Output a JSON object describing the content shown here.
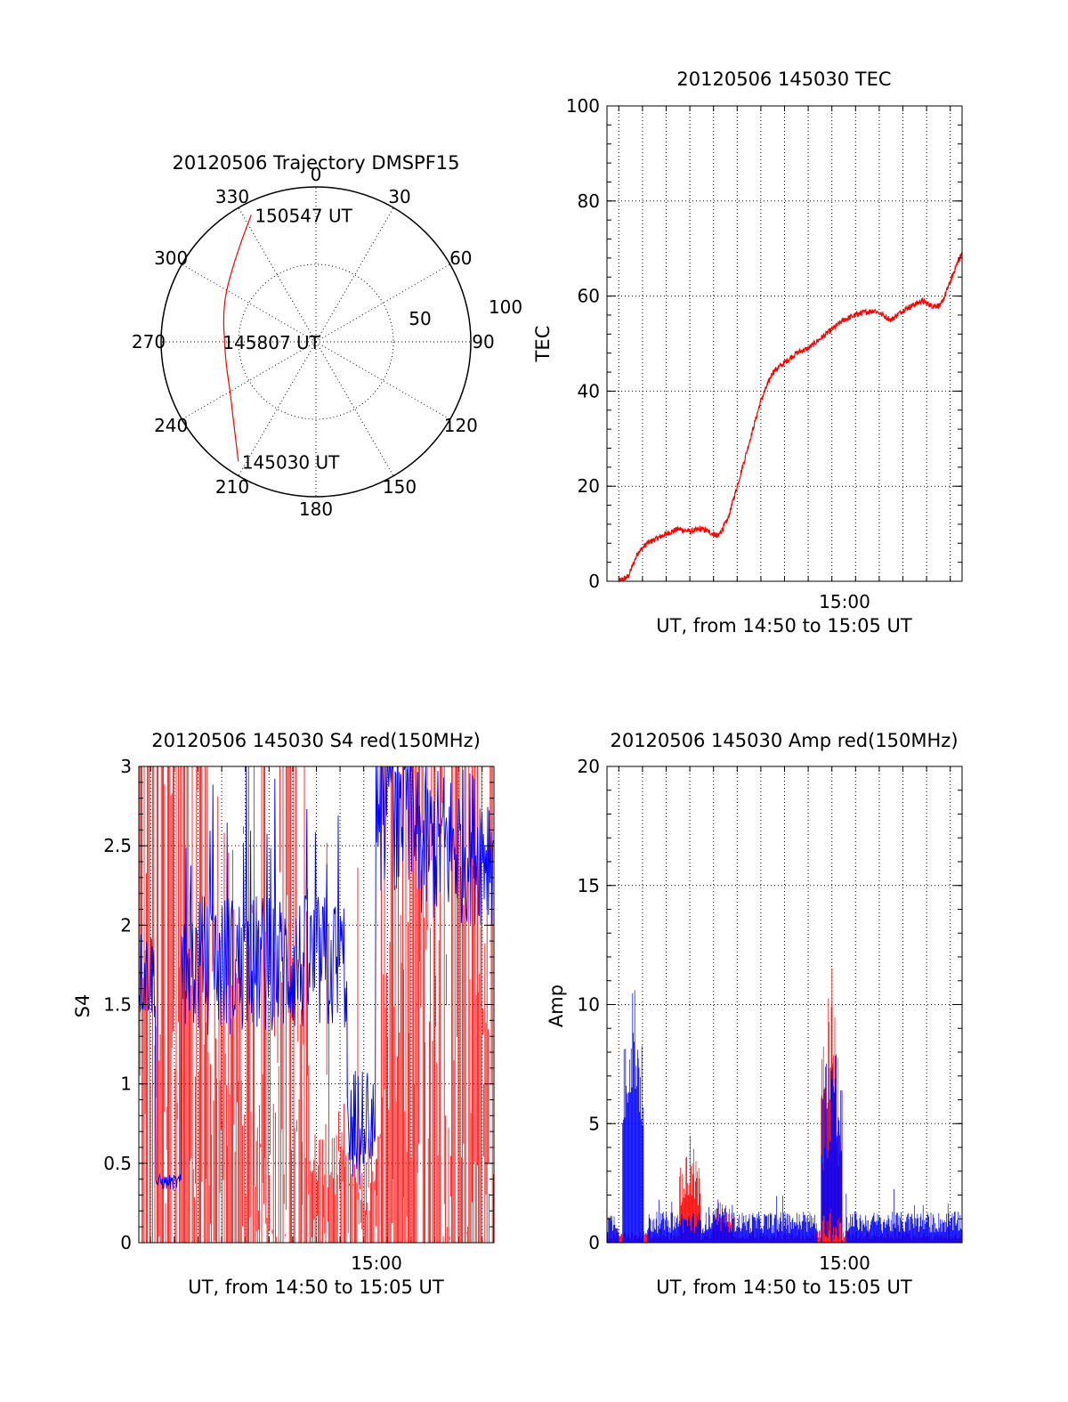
{
  "chart_data": [
    {
      "type": "polar",
      "title": "20120506 Trajectory DMSPF15",
      "angle_labels": [
        "0",
        "30",
        "60",
        "90",
        "120",
        "150",
        "180",
        "210",
        "240",
        "270",
        "300",
        "330"
      ],
      "radius_labels": [
        "50",
        "100"
      ],
      "radial_max": 100,
      "trajectory": {
        "color": "#ff0000",
        "points": [
          {
            "az": 333,
            "zen": 92
          },
          {
            "az": 320,
            "zen": 78
          },
          {
            "az": 300,
            "zen": 67
          },
          {
            "az": 285,
            "zen": 62
          },
          {
            "az": 270,
            "zen": 59
          },
          {
            "az": 255,
            "zen": 60
          },
          {
            "az": 240,
            "zen": 64
          },
          {
            "az": 225,
            "zen": 75
          },
          {
            "az": 213,
            "zen": 92
          }
        ]
      },
      "annotations": [
        {
          "text": "150547 UT",
          "az": 333,
          "zen": 92
        },
        {
          "text": "145807 UT",
          "az": 270,
          "zen": 59
        },
        {
          "text": "145030 UT",
          "az": 213,
          "zen": 92
        }
      ]
    },
    {
      "type": "line",
      "title": "20120506 145030 TEC",
      "ylabel": "TEC",
      "xlabel": "UT, from 14:50 to 15:05 UT",
      "xtick_label": "15:00",
      "ylim": [
        0,
        100
      ],
      "yticks": [
        "0",
        "20",
        "40",
        "60",
        "80",
        "100"
      ],
      "xlim_min": [
        50.5,
        65.5
      ],
      "series": [
        {
          "color": "#ff0000",
          "x": [
            51.0,
            51.4,
            51.8,
            52.2,
            52.6,
            53.0,
            53.5,
            54.0,
            54.5,
            55.0,
            55.2,
            55.6,
            56.0,
            56.5,
            57.0,
            57.5,
            58.0,
            58.5,
            59.0,
            59.5,
            60.0,
            60.5,
            61.0,
            61.3,
            61.8,
            62.5,
            63.0,
            63.4,
            63.8,
            64.2,
            64.6,
            65.0,
            65.3,
            65.5
          ],
          "y": [
            0,
            1,
            6,
            8,
            9,
            10,
            11,
            10.5,
            11,
            10,
            9.5,
            13,
            20,
            29,
            38,
            44,
            46,
            48,
            49,
            51,
            53,
            55,
            56,
            56.5,
            57,
            55,
            57,
            58,
            59,
            58,
            58,
            63,
            67,
            69
          ]
        }
      ]
    },
    {
      "type": "line",
      "title": "20120506 145030 S4 red(150MHz)",
      "ylabel": "S4",
      "xlabel": "UT, from 14:50 to 15:05 UT",
      "xtick_label": "15:00",
      "ylim": [
        0,
        3
      ],
      "yticks": [
        "0",
        "0.5",
        "1",
        "1.5",
        "2",
        "2.5",
        "3"
      ],
      "xlim_min": [
        50.5,
        65.5
      ],
      "series": [
        {
          "color": "#ff0000",
          "pattern": "dense spikes between 0 and 3"
        },
        {
          "color": "#0000ff",
          "pattern": "fluctuating 1.3–2.2 with drops near 0.35 and 0.5"
        }
      ]
    },
    {
      "type": "line",
      "title": "20120506 145030 Amp red(150MHz)",
      "ylabel": "Amp",
      "xlabel": "UT, from 14:50 to 15:05 UT",
      "xtick_label": "15:00",
      "ylim": [
        0,
        20
      ],
      "yticks": [
        "0",
        "5",
        "10",
        "15",
        "20"
      ],
      "xlim_min": [
        50.5,
        65.5
      ],
      "series": [
        {
          "color": "#ff0000",
          "peaks": [
            {
              "x": 54.0,
              "y": 4.6
            },
            {
              "x": 55.4,
              "y": 2.0
            },
            {
              "x": 60.0,
              "y": 11.6
            }
          ]
        },
        {
          "color": "#0000ff",
          "peaks": [
            {
              "x": 51.6,
              "y": 11.8
            },
            {
              "x": 60.0,
              "y": 10.0
            },
            {
              "x": 56.2,
              "y": 2.3
            }
          ]
        }
      ]
    }
  ]
}
